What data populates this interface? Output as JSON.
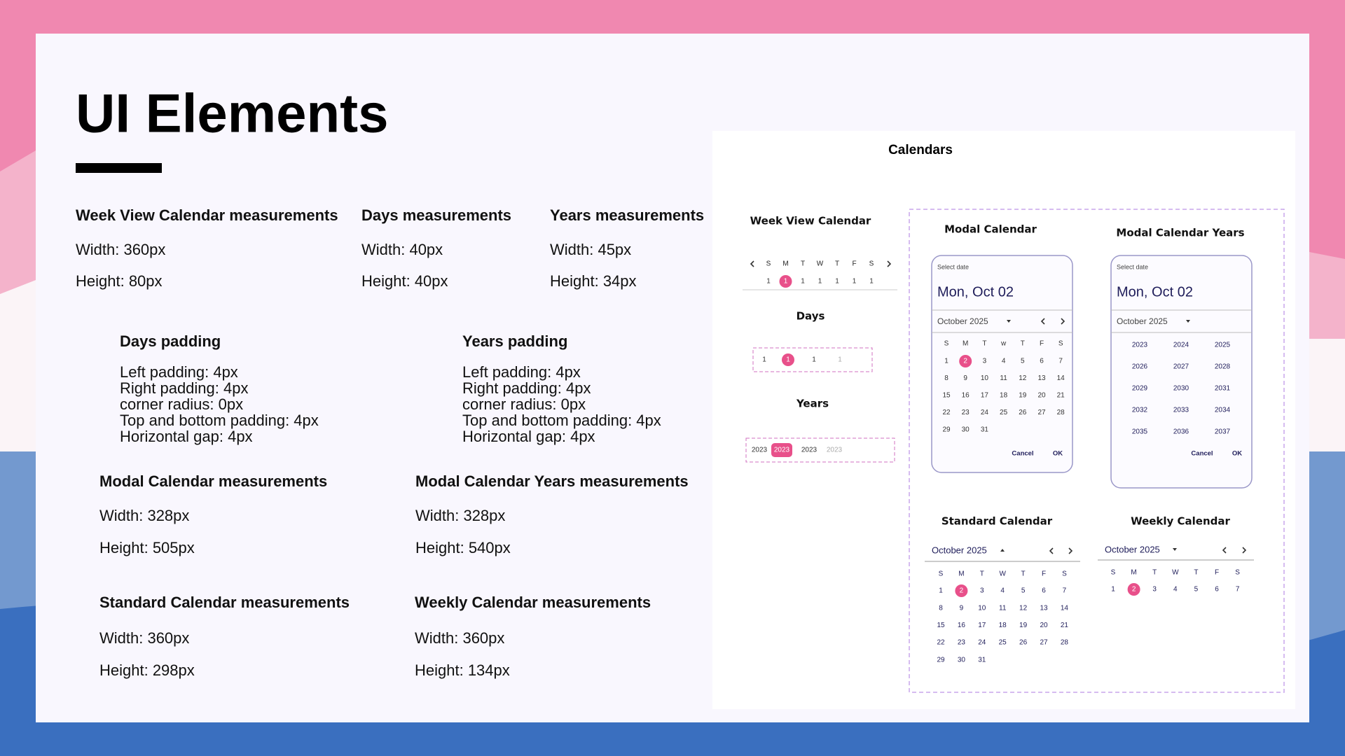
{
  "header": {
    "title": "UI Elements"
  },
  "measurements": [
    {
      "title": "Week View Calendar measurements",
      "lines": [
        "Width: 360px",
        "Height: 80px"
      ]
    },
    {
      "title": "Days measurements",
      "lines": [
        "Width: 40px",
        "Height: 40px"
      ]
    },
    {
      "title": "Years measurements",
      "lines": [
        "Width: 45px",
        "Height: 34px"
      ]
    },
    {
      "title": "Days  padding",
      "lines": [
        "Left padding: 4px",
        "Right padding: 4px",
        "corner radius: 0px",
        "Top and bottom padding: 4px",
        "Horizontal gap: 4px"
      ]
    },
    {
      "title": "Years padding",
      "lines": [
        "Left padding: 4px",
        "Right padding: 4px",
        "corner radius: 0px",
        "Top and bottom padding: 4px",
        "Horizontal gap: 4px"
      ]
    },
    {
      "title": "Modal Calendar measurements",
      "lines": [
        "Width: 328px",
        "Height: 505px"
      ]
    },
    {
      "title": "Modal Calendar  Years measurements",
      "lines": [
        "Width: 328px",
        "Height: 540px"
      ]
    },
    {
      "title": "Standard Calendar measurements",
      "lines": [
        "Width: 360px",
        "Height: 298px"
      ]
    },
    {
      "title": "Weekly Calendar measurements",
      "lines": [
        "Width: 360px",
        "Height: 134px"
      ]
    }
  ],
  "calendars": {
    "title": "Calendars",
    "week_view": {
      "title": "Week View Calendar",
      "weekdays": [
        "S",
        "M",
        "T",
        "W",
        "T",
        "F",
        "S"
      ],
      "days": [
        1,
        1,
        1,
        1,
        1,
        1,
        1
      ]
    },
    "days": {
      "title": "Days",
      "items": [
        1,
        1,
        1,
        1
      ]
    },
    "years": {
      "title": "Years",
      "items": [
        2023,
        2023,
        2023,
        2023
      ]
    },
    "modal": {
      "title": "Modal Calendar",
      "label": "Select date",
      "date": "Mon, Oct 02",
      "month": "October 2025",
      "weekdays": [
        "S",
        "M",
        "T",
        "w",
        "T",
        "F",
        "S"
      ],
      "days": [
        1,
        2,
        3,
        4,
        5,
        6,
        7,
        8,
        9,
        10,
        11,
        12,
        13,
        14,
        15,
        16,
        17,
        18,
        19,
        20,
        21,
        22,
        23,
        24,
        25,
        26,
        27,
        28,
        29,
        30,
        31
      ],
      "buttons": [
        "Cancel",
        "OK"
      ]
    },
    "modal_years": {
      "title": "Modal Calendar Years",
      "label": "Select date",
      "date": "Mon, Oct 02",
      "month": "October 2025",
      "years": [
        2023,
        2024,
        2025,
        2026,
        2027,
        2028,
        2029,
        2030,
        2031,
        2032,
        2033,
        2034,
        2035,
        2036,
        2037
      ],
      "buttons": [
        "Cancel",
        "OK"
      ]
    },
    "standard": {
      "title": "Standard Calendar",
      "month": "October 2025",
      "weekdays": [
        "S",
        "M",
        "T",
        "W",
        "T",
        "F",
        "S"
      ],
      "days": [
        1,
        2,
        3,
        4,
        5,
        6,
        7,
        8,
        9,
        10,
        11,
        12,
        13,
        14,
        15,
        16,
        17,
        18,
        19,
        20,
        21,
        22,
        23,
        24,
        25,
        26,
        27,
        28,
        29,
        30,
        31
      ]
    },
    "weekly": {
      "title": "Weekly  Calendar",
      "month": "October 2025",
      "weekdays": [
        "S",
        "M",
        "T",
        "W",
        "T",
        "F",
        "S"
      ],
      "days": [
        1,
        2,
        3,
        4,
        5,
        6,
        7
      ]
    }
  }
}
